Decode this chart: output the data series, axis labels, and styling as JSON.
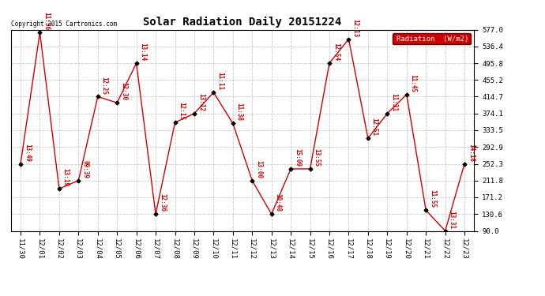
{
  "title": "Solar Radiation Daily 20151224",
  "copyright": "Copyright 2015 Cartronics.com",
  "legend_label": "Radiation  (W/m2)",
  "x_labels": [
    "11/30",
    "12/01",
    "12/02",
    "12/03",
    "12/04",
    "12/05",
    "12/06",
    "12/07",
    "12/08",
    "12/09",
    "12/10",
    "12/11",
    "12/12",
    "12/13",
    "12/14",
    "12/15",
    "12/16",
    "12/17",
    "12/18",
    "12/19",
    "12/20",
    "12/21",
    "12/22",
    "12/23"
  ],
  "y_values": [
    252.3,
    570.0,
    192.0,
    211.8,
    414.7,
    400.0,
    495.8,
    130.6,
    352.0,
    374.1,
    425.0,
    350.0,
    211.8,
    130.6,
    240.0,
    240.0,
    495.8,
    554.0,
    314.0,
    374.1,
    420.0,
    140.0,
    90.0,
    252.3
  ],
  "point_labels": [
    "13:49",
    "11:56",
    "13:19",
    "09:39",
    "12:25",
    "12:30",
    "13:14",
    "12:36",
    "12:15",
    "13:12",
    "11:11",
    "11:38",
    "13:00",
    "10:48",
    "15:09",
    "13:55",
    "12:54",
    "12:13",
    "12:51",
    "11:31",
    "11:45",
    "11:55",
    "13:31",
    "14:18"
  ],
  "ylim": [
    90.0,
    577.0
  ],
  "yticks": [
    90.0,
    130.6,
    171.2,
    211.8,
    252.3,
    292.9,
    333.5,
    374.1,
    414.7,
    455.2,
    495.8,
    536.4,
    577.0
  ],
  "line_color": "#cc0000",
  "marker_color": "#000000",
  "bg_color": "#ffffff",
  "grid_color": "#bbbbbb",
  "label_color": "#cc0000",
  "legend_bg": "#cc0000",
  "legend_text_color": "#ffffff",
  "fig_width": 6.9,
  "fig_height": 3.75,
  "dpi": 100
}
